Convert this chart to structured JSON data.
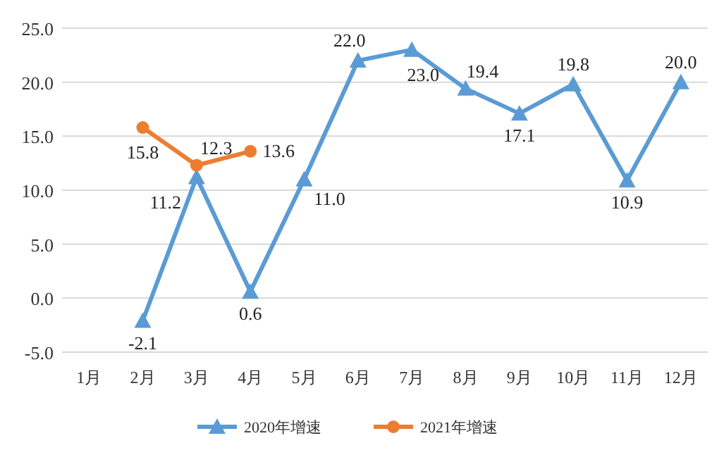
{
  "chart_data": {
    "type": "line",
    "categories": [
      "1月",
      "2月",
      "3月",
      "4月",
      "5月",
      "6月",
      "7月",
      "8月",
      "9月",
      "10月",
      "11月",
      "12月"
    ],
    "ylim": [
      -5,
      25
    ],
    "yticks": [
      {
        "value": -5,
        "label": "-5.0"
      },
      {
        "value": 0,
        "label": "0.0"
      },
      {
        "value": 5,
        "label": "5.0"
      },
      {
        "value": 10,
        "label": "10.0"
      },
      {
        "value": 15,
        "label": "15.0"
      },
      {
        "value": 20,
        "label": "20.0"
      },
      {
        "value": 25,
        "label": "25.0"
      }
    ],
    "grid": "y",
    "legend": "bottom",
    "series": [
      {
        "name": "2020年增速",
        "color": "#5b9bd5",
        "marker": "triangle",
        "values": [
          null,
          -2.1,
          11.2,
          0.6,
          11.0,
          22.0,
          23.0,
          19.4,
          17.1,
          19.8,
          10.9,
          20.0
        ],
        "value_labels": [
          null,
          "-2.1",
          "11.2",
          "0.6",
          "11.0",
          "22.0",
          "23.0",
          "19.4",
          "17.1",
          "19.8",
          "10.9",
          "20.0"
        ]
      },
      {
        "name": "2021年增速",
        "color": "#ed7d31",
        "marker": "circle",
        "values": [
          null,
          15.8,
          12.3,
          13.6,
          null,
          null,
          null,
          null,
          null,
          null,
          null,
          null
        ],
        "value_labels": [
          null,
          "15.8",
          "12.3",
          "13.6",
          null,
          null,
          null,
          null,
          null,
          null,
          null,
          null
        ]
      }
    ]
  }
}
